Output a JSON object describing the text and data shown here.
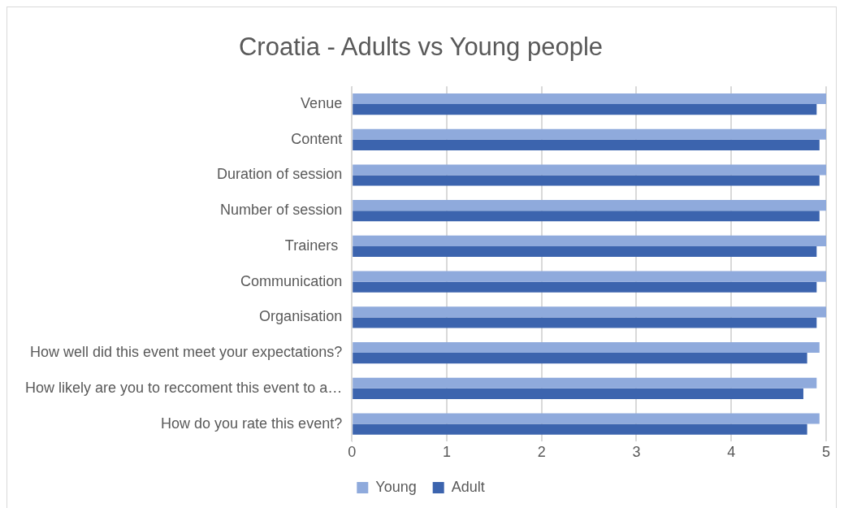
{
  "chart_data": {
    "type": "bar",
    "orientation": "horizontal",
    "title": "Croatia - Adults vs Young people",
    "categories": [
      "Venue",
      "Content",
      "Duration of session",
      "Number of session",
      "Trainers ",
      "Communication",
      "Organisation",
      "How well did this event meet your expectations?",
      "How likely are you to reccoment this event to a…",
      "How do you rate this event?"
    ],
    "series": [
      {
        "name": "Young",
        "color": "#8faadc",
        "values": [
          5,
          5,
          5,
          5,
          5,
          5,
          5,
          4.93,
          4.9,
          4.93
        ]
      },
      {
        "name": "Adult",
        "color": "#3c64ae",
        "values": [
          4.9,
          4.93,
          4.93,
          4.93,
          4.9,
          4.9,
          4.9,
          4.8,
          4.76,
          4.8
        ]
      }
    ],
    "xlim": [
      0,
      5
    ],
    "xticks": [
      0,
      1,
      2,
      3,
      4,
      5
    ],
    "grid": "x",
    "legend": "bottom"
  }
}
